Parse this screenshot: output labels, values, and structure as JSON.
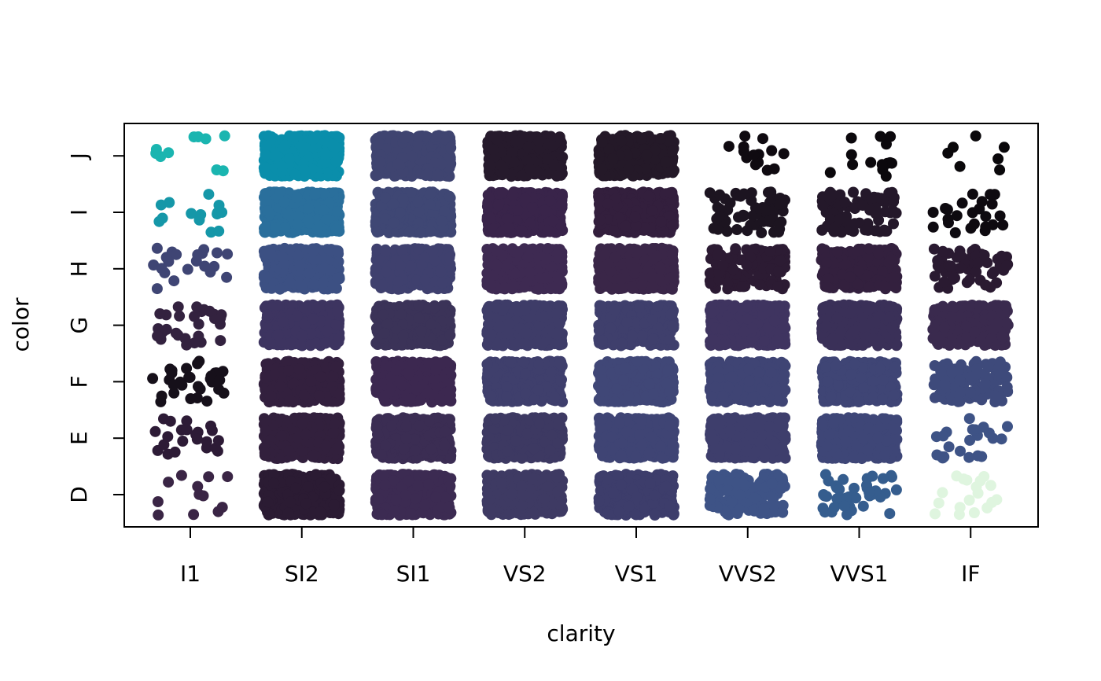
{
  "chart_data": {
    "type": "scatter",
    "title": "",
    "xlabel": "clarity",
    "ylabel": "color",
    "x_categories": [
      "I1",
      "SI2",
      "SI1",
      "VS2",
      "VS1",
      "VVS2",
      "VVS1",
      "IF"
    ],
    "y_categories": [
      "D",
      "E",
      "F",
      "G",
      "H",
      "I",
      "J"
    ],
    "jitter": true,
    "grid": false,
    "legend": "none",
    "cells": [
      {
        "clarity": "I1",
        "color": "D",
        "n": 12,
        "shade": "#3a2545"
      },
      {
        "clarity": "I1",
        "color": "E",
        "n": 22,
        "shade": "#2d1b36"
      },
      {
        "clarity": "I1",
        "color": "F",
        "n": 30,
        "shade": "#16101a"
      },
      {
        "clarity": "I1",
        "color": "G",
        "n": 28,
        "shade": "#33223f"
      },
      {
        "clarity": "I1",
        "color": "H",
        "n": 22,
        "shade": "#3f4574"
      },
      {
        "clarity": "I1",
        "color": "I",
        "n": 14,
        "shade": "#1597a8"
      },
      {
        "clarity": "I1",
        "color": "J",
        "n": 10,
        "shade": "#1ab5b0"
      },
      {
        "clarity": "SI2",
        "color": "D",
        "n": 900,
        "shade": "#2b1b33"
      },
      {
        "clarity": "SI2",
        "color": "E",
        "n": 900,
        "shade": "#32203d"
      },
      {
        "clarity": "SI2",
        "color": "F",
        "n": 900,
        "shade": "#33203e"
      },
      {
        "clarity": "SI2",
        "color": "G",
        "n": 900,
        "shade": "#3d3460"
      },
      {
        "clarity": "SI2",
        "color": "H",
        "n": 900,
        "shade": "#3c5083"
      },
      {
        "clarity": "SI2",
        "color": "I",
        "n": 900,
        "shade": "#2a6f9c"
      },
      {
        "clarity": "SI2",
        "color": "J",
        "n": 400,
        "shade": "#0a8eab"
      },
      {
        "clarity": "SI1",
        "color": "D",
        "n": 900,
        "shade": "#3c2b52"
      },
      {
        "clarity": "SI1",
        "color": "E",
        "n": 900,
        "shade": "#3b2d53"
      },
      {
        "clarity": "SI1",
        "color": "F",
        "n": 900,
        "shade": "#3c2850"
      },
      {
        "clarity": "SI1",
        "color": "G",
        "n": 900,
        "shade": "#3b3358"
      },
      {
        "clarity": "SI1",
        "color": "H",
        "n": 900,
        "shade": "#3f406e"
      },
      {
        "clarity": "SI1",
        "color": "I",
        "n": 900,
        "shade": "#3f4774"
      },
      {
        "clarity": "SI1",
        "color": "J",
        "n": 700,
        "shade": "#3f4470"
      },
      {
        "clarity": "VS2",
        "color": "D",
        "n": 900,
        "shade": "#3e3a63"
      },
      {
        "clarity": "VS2",
        "color": "E",
        "n": 900,
        "shade": "#3d3962"
      },
      {
        "clarity": "VS2",
        "color": "F",
        "n": 900,
        "shade": "#3f3f6c"
      },
      {
        "clarity": "VS2",
        "color": "G",
        "n": 900,
        "shade": "#3e3c68"
      },
      {
        "clarity": "VS2",
        "color": "H",
        "n": 900,
        "shade": "#3e2a52"
      },
      {
        "clarity": "VS2",
        "color": "I",
        "n": 900,
        "shade": "#39244a"
      },
      {
        "clarity": "VS2",
        "color": "J",
        "n": 500,
        "shade": "#261a2c"
      },
      {
        "clarity": "VS1",
        "color": "D",
        "n": 300,
        "shade": "#3d3d6b"
      },
      {
        "clarity": "VS1",
        "color": "E",
        "n": 900,
        "shade": "#3f4474"
      },
      {
        "clarity": "VS1",
        "color": "F",
        "n": 900,
        "shade": "#404777"
      },
      {
        "clarity": "VS1",
        "color": "G",
        "n": 900,
        "shade": "#3f3f6c"
      },
      {
        "clarity": "VS1",
        "color": "H",
        "n": 900,
        "shade": "#3a2648"
      },
      {
        "clarity": "VS1",
        "color": "I",
        "n": 900,
        "shade": "#331f3d"
      },
      {
        "clarity": "VS1",
        "color": "J",
        "n": 400,
        "shade": "#241928"
      },
      {
        "clarity": "VVS2",
        "color": "D",
        "n": 160,
        "shade": "#3e5386"
      },
      {
        "clarity": "VVS2",
        "color": "E",
        "n": 500,
        "shade": "#3e3e6c"
      },
      {
        "clarity": "VVS2",
        "color": "F",
        "n": 600,
        "shade": "#3f4474"
      },
      {
        "clarity": "VVS2",
        "color": "G",
        "n": 900,
        "shade": "#3f3460"
      },
      {
        "clarity": "VVS2",
        "color": "H",
        "n": 120,
        "shade": "#2c1b33"
      },
      {
        "clarity": "VVS2",
        "color": "I",
        "n": 70,
        "shade": "#1c1420"
      },
      {
        "clarity": "VVS2",
        "color": "J",
        "n": 14,
        "shade": "#0f0a10"
      },
      {
        "clarity": "VVS1",
        "color": "D",
        "n": 40,
        "shade": "#355d8e"
      },
      {
        "clarity": "VVS1",
        "color": "E",
        "n": 500,
        "shade": "#3e4677"
      },
      {
        "clarity": "VVS1",
        "color": "F",
        "n": 600,
        "shade": "#3f4575"
      },
      {
        "clarity": "VVS1",
        "color": "G",
        "n": 700,
        "shade": "#3a3058"
      },
      {
        "clarity": "VVS1",
        "color": "H",
        "n": 300,
        "shade": "#33203e"
      },
      {
        "clarity": "VVS1",
        "color": "I",
        "n": 90,
        "shade": "#24182a"
      },
      {
        "clarity": "VVS1",
        "color": "J",
        "n": 14,
        "shade": "#0b080c"
      },
      {
        "clarity": "IF",
        "color": "D",
        "n": 18,
        "shade": "#dff5df"
      },
      {
        "clarity": "IF",
        "color": "E",
        "n": 22,
        "shade": "#3e5386"
      },
      {
        "clarity": "IF",
        "color": "F",
        "n": 120,
        "shade": "#3e4a7b"
      },
      {
        "clarity": "IF",
        "color": "G",
        "n": 300,
        "shade": "#3a2a4e"
      },
      {
        "clarity": "IF",
        "color": "H",
        "n": 60,
        "shade": "#2a1a31"
      },
      {
        "clarity": "IF",
        "color": "I",
        "n": 24,
        "shade": "#0e0a10"
      },
      {
        "clarity": "IF",
        "color": "J",
        "n": 7,
        "shade": "#0a080b"
      }
    ]
  }
}
